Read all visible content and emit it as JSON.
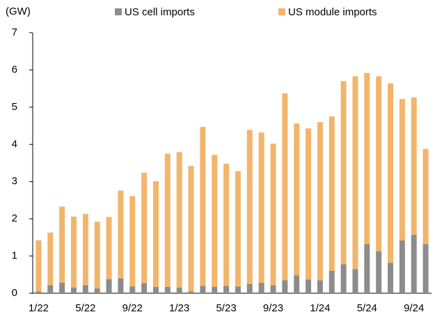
{
  "chart_data": {
    "type": "stacked_bar",
    "y_label": "(GW)",
    "categories": [
      "1/22",
      null,
      null,
      null,
      "5/22",
      null,
      null,
      null,
      "9/22",
      null,
      null,
      null,
      "1/23",
      null,
      null,
      null,
      "5/23",
      null,
      null,
      null,
      "9/23",
      null,
      null,
      null,
      "1/24",
      null,
      null,
      null,
      "5/24",
      null,
      null,
      null,
      "9/24",
      null
    ],
    "series": [
      {
        "name": "US cell imports",
        "color": "#8c8c8c",
        "values": [
          0.05,
          0.22,
          0.28,
          0.15,
          0.22,
          0.13,
          0.38,
          0.4,
          0.18,
          0.27,
          0.17,
          0.17,
          0.15,
          0.05,
          0.2,
          0.17,
          0.2,
          0.18,
          0.25,
          0.28,
          0.22,
          0.35,
          0.48,
          0.37,
          0.35,
          0.6,
          0.78,
          0.65,
          1.32,
          1.13,
          0.82,
          1.42,
          1.57,
          1.32
        ]
      },
      {
        "name": "US module imports",
        "color": "#f2b56b",
        "values": [
          1.37,
          1.41,
          2.05,
          1.91,
          1.91,
          1.79,
          1.67,
          2.36,
          2.43,
          2.97,
          2.84,
          3.58,
          3.64,
          3.37,
          4.27,
          3.55,
          3.28,
          3.1,
          4.14,
          4.04,
          3.8,
          5.02,
          4.08,
          4.06,
          4.25,
          4.15,
          4.92,
          5.18,
          4.6,
          4.7,
          4.82,
          3.8,
          3.69,
          2.56
        ]
      }
    ],
    "ylim": [
      0,
      7
    ],
    "yticks": [
      0,
      1,
      2,
      3,
      4,
      5,
      6,
      7
    ],
    "grid": false,
    "legend": "top"
  }
}
